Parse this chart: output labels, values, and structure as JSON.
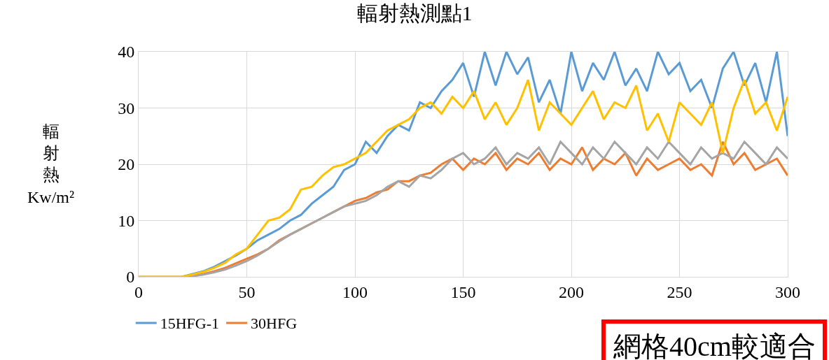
{
  "chart_data": {
    "type": "line",
    "title": "輻射熱測點1",
    "ylabel": "輻射熱 Kw/m²",
    "x": [
      0,
      5,
      10,
      15,
      20,
      25,
      30,
      35,
      40,
      45,
      50,
      55,
      60,
      65,
      70,
      75,
      80,
      85,
      90,
      95,
      100,
      105,
      110,
      115,
      120,
      125,
      130,
      135,
      140,
      145,
      150,
      155,
      160,
      165,
      170,
      175,
      180,
      185,
      190,
      195,
      200,
      205,
      210,
      215,
      220,
      225,
      230,
      235,
      240,
      245,
      250,
      255,
      260,
      265,
      270,
      275,
      280,
      285,
      290,
      295,
      300
    ],
    "series": [
      {
        "name": "15HFG-1",
        "color": "#5b9bd5",
        "values": [
          null,
          null,
          null,
          null,
          0,
          0.5,
          1,
          1.8,
          2.8,
          3.8,
          5,
          6.5,
          7.5,
          8.5,
          10,
          11,
          13,
          14.5,
          16,
          19,
          20,
          24,
          22,
          25,
          27,
          26,
          31,
          30,
          33,
          35,
          38,
          32,
          40,
          34,
          40,
          36,
          39,
          31,
          35,
          29,
          40,
          33,
          38,
          35,
          40,
          34,
          37,
          33,
          40,
          36,
          38,
          33,
          35,
          30,
          37,
          40,
          34,
          38,
          31,
          40,
          25
        ]
      },
      {
        "name": "30HFG",
        "color": "#ed7d31",
        "values": [
          null,
          null,
          null,
          null,
          null,
          0.2,
          0.5,
          1,
          1.6,
          2.4,
          3.2,
          4,
          5,
          6.5,
          7.5,
          8.5,
          9.5,
          10.5,
          11.5,
          12.5,
          13.5,
          14,
          15,
          15.5,
          17,
          17,
          18,
          18.5,
          20,
          21,
          19,
          21,
          20,
          22,
          19,
          21,
          20,
          22,
          19,
          21,
          20,
          23,
          19,
          21,
          20,
          22,
          18,
          21,
          19,
          20,
          21,
          19,
          20,
          18,
          24,
          20,
          22,
          19,
          20,
          21,
          18
        ]
      },
      {
        "color": "#a5a5a5",
        "values": [
          0,
          0,
          0,
          0,
          0,
          0.1,
          0.4,
          0.8,
          1.3,
          2,
          2.8,
          3.8,
          5,
          6.3,
          7.5,
          8.5,
          9.5,
          10.5,
          11.5,
          12.5,
          13,
          13.5,
          14.5,
          16,
          17,
          16,
          18,
          17.5,
          19,
          21,
          22,
          20,
          21,
          23,
          20,
          22,
          21,
          23,
          20,
          24,
          22,
          20,
          23,
          21,
          24,
          22,
          20,
          23,
          21,
          24,
          22,
          20,
          23,
          21,
          22,
          21,
          24,
          22,
          20,
          23,
          21
        ]
      },
      {
        "color": "#ffc000",
        "values": [
          0,
          0,
          0,
          0,
          0,
          0.4,
          0.9,
          1.6,
          2.5,
          4,
          5,
          7.5,
          10,
          10.5,
          12,
          15.5,
          16,
          18,
          19.5,
          20,
          21,
          22,
          24,
          26,
          27,
          28,
          30,
          31,
          29,
          32,
          30,
          33,
          28,
          31,
          27,
          30,
          35,
          26,
          31,
          29,
          27,
          30,
          33,
          28,
          31,
          30,
          34,
          26,
          29,
          24,
          31,
          29,
          27,
          31,
          22,
          30,
          35,
          29,
          31,
          26,
          32
        ]
      }
    ],
    "xlim": [
      0,
      300
    ],
    "xticks": [
      0,
      50,
      100,
      150,
      200,
      250,
      300
    ],
    "ylim": [
      0,
      40
    ],
    "yticks": [
      0,
      10,
      20,
      30,
      40
    ],
    "grid": true,
    "legend": "bottom",
    "marker": "none",
    "line_style": "solid",
    "annotations": [
      "網格40cm較適合"
    ]
  }
}
